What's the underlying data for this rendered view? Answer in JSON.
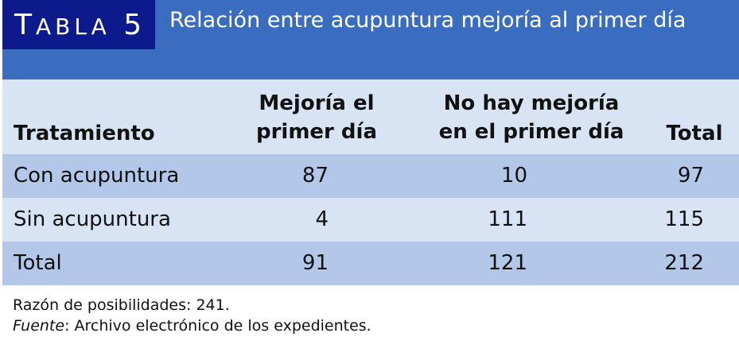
{
  "table": {
    "label_first": "T",
    "label_rest": "ABLA",
    "number": "5",
    "title": "Relación entre acupuntura mejoría al primer día"
  },
  "colors": {
    "header_band": "#3a6cc0",
    "label_box": "#0d1a8c",
    "row_dark": "#b3c7e8",
    "row_light": "#d8e3f4"
  },
  "columns": {
    "treatment": "Tratamiento",
    "improved_line1": "Mejoría el",
    "improved_line2": "primer día",
    "not_improved_line1": "No hay mejoría",
    "not_improved_line2": "en el primer día",
    "total": "Total"
  },
  "rows": [
    {
      "name": "Con acupuntura",
      "improved": "87",
      "not_improved": "10",
      "total": "97"
    },
    {
      "name": "Sin acupuntura",
      "improved": "4",
      "not_improved": "111",
      "total": "115"
    },
    {
      "name": "Total",
      "improved": "91",
      "not_improved": "121",
      "total": "212"
    }
  ],
  "notes": {
    "odds_ratio": "Razón de posibilidades: 241.",
    "source_label": "Fuente",
    "source_text": ": Archivo electrónico de los expedientes."
  }
}
